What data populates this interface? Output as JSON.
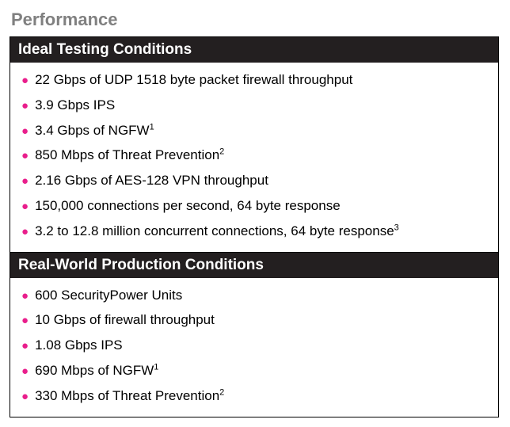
{
  "title": "Performance",
  "colors": {
    "title_color": "#808080",
    "header_bg": "#231f20",
    "header_text": "#ffffff",
    "bullet_color": "#e91e8c",
    "body_text": "#000000",
    "border_color": "#000000",
    "background": "#ffffff"
  },
  "typography": {
    "title_fontsize": 22,
    "header_fontsize": 19,
    "body_fontsize": 17,
    "sup_fontsize": 11,
    "font_family": "Arial"
  },
  "sections": [
    {
      "header": "Ideal Testing Conditions",
      "items": [
        {
          "text": "22 Gbps of UDP 1518 byte packet firewall throughput",
          "sup": ""
        },
        {
          "text": "3.9 Gbps IPS",
          "sup": ""
        },
        {
          "text": "3.4 Gbps of NGFW",
          "sup": "1"
        },
        {
          "text": "850 Mbps of Threat Prevention",
          "sup": "2"
        },
        {
          "text": "2.16 Gbps of AES-128 VPN throughput",
          "sup": ""
        },
        {
          "text": "150,000 connections per second, 64 byte response",
          "sup": ""
        },
        {
          "text": "3.2 to 12.8 million concurrent connections, 64 byte response",
          "sup": "3"
        }
      ]
    },
    {
      "header": "Real-World Production Conditions",
      "items": [
        {
          "text": "600 SecurityPower Units",
          "sup": ""
        },
        {
          "text": "10 Gbps of firewall throughput",
          "sup": ""
        },
        {
          "text": "1.08 Gbps IPS",
          "sup": ""
        },
        {
          "text": "690 Mbps of NGFW",
          "sup": "1"
        },
        {
          "text": "330 Mbps of Threat Prevention",
          "sup": "2"
        }
      ]
    }
  ]
}
